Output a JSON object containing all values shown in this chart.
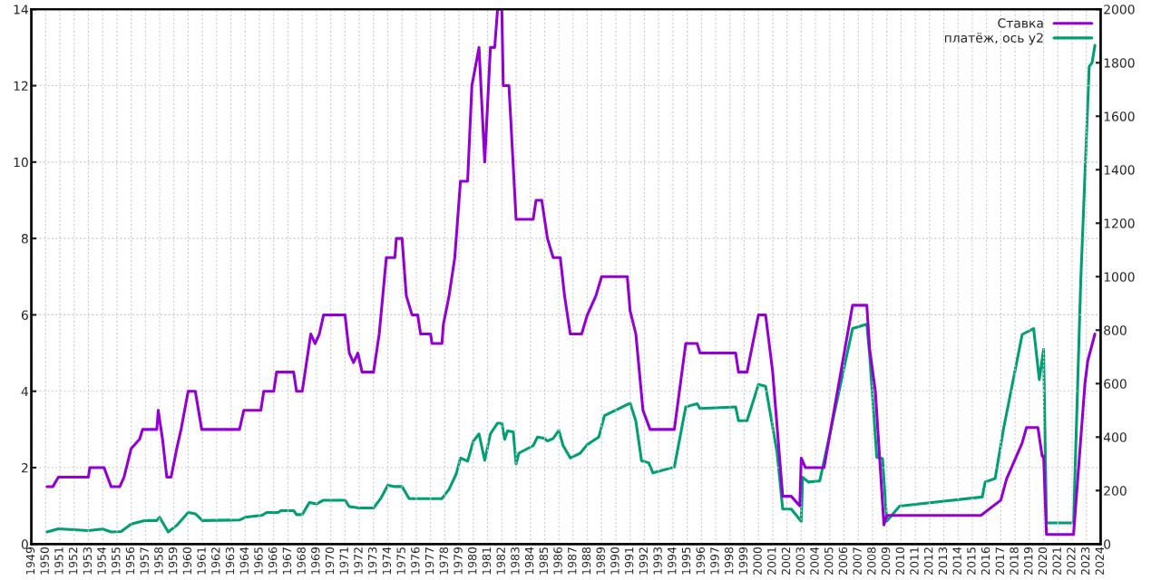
{
  "chart_data": {
    "type": "line",
    "xlim": [
      1949,
      2024
    ],
    "xticks": [
      1949,
      1950,
      1951,
      1952,
      1953,
      1954,
      1955,
      1956,
      1957,
      1958,
      1959,
      1960,
      1961,
      1962,
      1963,
      1964,
      1965,
      1966,
      1967,
      1968,
      1969,
      1970,
      1971,
      1972,
      1973,
      1974,
      1975,
      1976,
      1977,
      1978,
      1979,
      1980,
      1981,
      1982,
      1983,
      1984,
      1985,
      1986,
      1987,
      1988,
      1989,
      1990,
      1991,
      1992,
      1993,
      1994,
      1995,
      1996,
      1997,
      1998,
      1999,
      2000,
      2001,
      2002,
      2003,
      2004,
      2005,
      2006,
      2007,
      2008,
      2009,
      2010,
      2011,
      2012,
      2013,
      2014,
      2015,
      2016,
      2017,
      2018,
      2019,
      2020,
      2021,
      2022,
      2023,
      2024
    ],
    "ylim": [
      0,
      14
    ],
    "yticks": [
      0,
      2,
      4,
      6,
      8,
      10,
      12,
      14
    ],
    "y2lim": [
      0,
      2000
    ],
    "y2ticks": [
      0,
      200,
      400,
      600,
      800,
      1000,
      1200,
      1400,
      1600,
      1800,
      2000
    ],
    "grid": true,
    "legend": "top right",
    "series": [
      {
        "name": "Ставка",
        "color": "#9400d3",
        "x": [
          1950.1,
          1950.5,
          1950.9,
          1953.0,
          1953.1,
          1954.1,
          1954.6,
          1955.2,
          1955.5,
          1956.0,
          1956.6,
          1956.8,
          1957.8,
          1957.9,
          1958.2,
          1958.5,
          1958.8,
          1959.2,
          1959.5,
          1960.0,
          1960.5,
          1960.95,
          1963.6,
          1963.9,
          1965.1,
          1965.3,
          1966.0,
          1966.2,
          1967.4,
          1967.6,
          1968.0,
          1968.2,
          1968.6,
          1968.9,
          1969.2,
          1969.5,
          1971.0,
          1971.3,
          1971.6,
          1971.9,
          1972.2,
          1973.0,
          1973.4,
          1973.9,
          1974.5,
          1974.6,
          1975.0,
          1975.3,
          1975.7,
          1976.1,
          1976.3,
          1977.0,
          1977.1,
          1977.8,
          1977.9,
          1978.3,
          1978.7,
          1979.1,
          1979.6,
          1979.9,
          1980.4,
          1980.8,
          1981.2,
          1981.5,
          1981.7,
          1982.0,
          1982.1,
          1982.5,
          1983.0,
          1984.2,
          1984.4,
          1984.8,
          1985.2,
          1985.6,
          1986.1,
          1986.4,
          1986.8,
          1987.6,
          1988.0,
          1988.6,
          1989.0,
          1990.8,
          1991.0,
          1991.4,
          1991.9,
          1992.4,
          1994.1,
          1994.9,
          1995.7,
          1995.9,
          1998.4,
          1998.6,
          1999.2,
          2000.0,
          2000.5,
          2001.0,
          2001.7,
          2002.3,
          2002.9,
          2003.0,
          2003.3,
          2004.3,
          2004.6,
          2006.6,
          2007.6,
          2007.8,
          2008.2,
          2008.8,
          2009.0,
          2015.6,
          2017.0,
          2017.4,
          2018.5,
          2018.8,
          2019.6,
          2019.9,
          2020.0,
          2020.2,
          2022.1,
          2022.9,
          2023.1,
          2023.6
        ],
        "values": [
          1.5,
          1.5,
          1.75,
          1.75,
          2.0,
          2.0,
          1.5,
          1.5,
          1.75,
          2.5,
          2.75,
          3.0,
          3.0,
          3.5,
          2.75,
          1.75,
          1.75,
          2.5,
          3.0,
          4.0,
          4.0,
          3.0,
          3.0,
          3.5,
          3.5,
          4.0,
          4.0,
          4.5,
          4.5,
          4.0,
          4.0,
          4.5,
          5.5,
          5.25,
          5.5,
          6.0,
          6.0,
          5.0,
          4.75,
          5.0,
          4.5,
          4.5,
          5.5,
          7.5,
          7.5,
          8.0,
          8.0,
          6.5,
          6.0,
          6.0,
          5.5,
          5.5,
          5.25,
          5.25,
          5.75,
          6.5,
          7.5,
          9.5,
          9.5,
          12.0,
          13.0,
          10.0,
          13.0,
          13.0,
          14.0,
          14.0,
          12.0,
          12.0,
          8.5,
          8.5,
          9.0,
          9.0,
          8.0,
          7.5,
          7.5,
          6.5,
          5.5,
          5.5,
          6.0,
          6.5,
          7.0,
          7.0,
          6.1,
          5.5,
          3.5,
          3.0,
          3.0,
          5.25,
          5.25,
          5.0,
          5.0,
          4.5,
          4.5,
          6.0,
          6.0,
          4.5,
          1.25,
          1.25,
          1.0,
          2.25,
          2.0,
          2.0,
          2.0,
          6.25,
          6.25,
          5.1,
          4.0,
          0.5,
          0.75,
          0.75,
          1.15,
          1.7,
          2.65,
          3.05,
          3.05,
          2.3,
          2.3,
          0.25,
          0.25,
          4.2,
          4.8,
          5.5
        ]
      },
      {
        "name": "платёж, ось y2",
        "color": "#009e73",
        "axis": "y2",
        "x": [
          1950.1,
          1950.9,
          1953.0,
          1954.0,
          1954.6,
          1955.3,
          1956.0,
          1957.0,
          1957.8,
          1958.0,
          1958.6,
          1959.2,
          1960.0,
          1960.5,
          1961.0,
          1963.6,
          1964.0,
          1965.2,
          1965.5,
          1966.3,
          1966.5,
          1967.4,
          1967.6,
          1968.0,
          1968.5,
          1969.0,
          1969.5,
          1971.0,
          1971.3,
          1972.0,
          1973.0,
          1973.5,
          1974.0,
          1974.5,
          1975.0,
          1975.5,
          1977.0,
          1977.8,
          1978.3,
          1978.8,
          1979.1,
          1979.6,
          1980.0,
          1980.4,
          1980.8,
          1981.2,
          1981.7,
          1982.0,
          1982.2,
          1982.4,
          1982.8,
          1983.0,
          1983.2,
          1984.2,
          1984.5,
          1985.0,
          1985.2,
          1985.6,
          1986.0,
          1986.3,
          1986.8,
          1987.5,
          1988.0,
          1988.8,
          1989.2,
          1991.0,
          1991.4,
          1991.8,
          1992.3,
          1992.6,
          1994.1,
          1994.9,
          1995.7,
          1995.9,
          1998.4,
          1998.6,
          1999.2,
          2000.0,
          2000.5,
          2001.3,
          2001.7,
          2002.3,
          2003.0,
          2003.1,
          2003.5,
          2004.3,
          2006.6,
          2007.6,
          2007.8,
          2008.3,
          2008.7,
          2009.0,
          2009.9,
          2015.7,
          2015.9,
          2016.6,
          2017.2,
          2018.5,
          2019.3,
          2019.7,
          2020.0,
          2020.2,
          2022.1,
          2022.6,
          2023.2,
          2023.4,
          2023.6
        ],
        "values": [
          45,
          57,
          50,
          56,
          45,
          47,
          75,
          88,
          88,
          100,
          45,
          70,
          118,
          113,
          88,
          90,
          100,
          108,
          118,
          118,
          125,
          125,
          110,
          110,
          155,
          150,
          164,
          164,
          140,
          135,
          135,
          170,
          220,
          215,
          215,
          170,
          170,
          170,
          205,
          262,
          322,
          310,
          385,
          412,
          313,
          412,
          452,
          452,
          392,
          423,
          420,
          300,
          340,
          368,
          400,
          395,
          385,
          395,
          425,
          368,
          322,
          340,
          372,
          400,
          480,
          527,
          460,
          311,
          304,
          266,
          288,
          513,
          525,
          507,
          513,
          461,
          461,
          597,
          590,
          345,
          131,
          131,
          85,
          250,
          232,
          236,
          806,
          822,
          706,
          324,
          320,
          86,
          142,
          176,
          232,
          245,
          434,
          784,
          806,
          615,
          728,
          79,
          79,
          975,
          1786,
          1800,
          1865
        ]
      }
    ]
  }
}
